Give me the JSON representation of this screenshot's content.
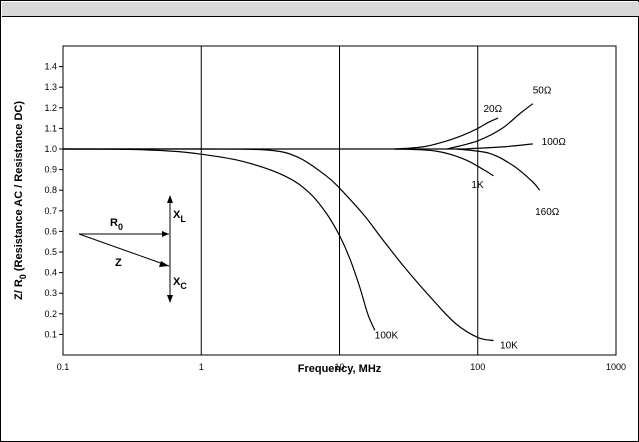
{
  "chart_data": {
    "type": "line",
    "xscale": "log",
    "xlabel": "Frequency, MHz",
    "ylabel_parts": [
      "Z/ R",
      "0",
      " (Resistance AC / Resistance DC)"
    ],
    "xlim": [
      0.1,
      1000
    ],
    "ylim": [
      0,
      1.5
    ],
    "grid": "vertical-decades",
    "x_ticks": [
      {
        "value": 0.1,
        "label": "0.1"
      },
      {
        "value": 1,
        "label": "1"
      },
      {
        "value": 10,
        "label": "10"
      },
      {
        "value": 100,
        "label": "100"
      },
      {
        "value": 1000,
        "label": "1000"
      }
    ],
    "y_ticks": [
      {
        "value": 0.1,
        "label": "0.1"
      },
      {
        "value": 0.2,
        "label": "0.2"
      },
      {
        "value": 0.3,
        "label": "0.3"
      },
      {
        "value": 0.4,
        "label": "0.4"
      },
      {
        "value": 0.5,
        "label": "0.5"
      },
      {
        "value": 0.6,
        "label": "0.6"
      },
      {
        "value": 0.7,
        "label": "0.7"
      },
      {
        "value": 0.8,
        "label": "0.8"
      },
      {
        "value": 0.9,
        "label": "0.9"
      },
      {
        "value": 1.0,
        "label": "1.0"
      },
      {
        "value": 1.1,
        "label": "1.1"
      },
      {
        "value": 1.2,
        "label": "1.2"
      },
      {
        "value": 1.3,
        "label": "1.3"
      },
      {
        "value": 1.4,
        "label": "1.4"
      }
    ],
    "baseline": {
      "y": 1.0,
      "x": [
        0.1,
        80
      ]
    },
    "series": [
      {
        "name": "100K",
        "label_at": [
          18,
          0.1
        ],
        "points": [
          [
            0.1,
            1.0
          ],
          [
            0.3,
            0.998
          ],
          [
            0.6,
            0.99
          ],
          [
            1,
            0.975
          ],
          [
            2,
            0.94
          ],
          [
            4,
            0.87
          ],
          [
            6,
            0.79
          ],
          [
            8,
            0.69
          ],
          [
            10,
            0.58
          ],
          [
            12,
            0.46
          ],
          [
            14,
            0.33
          ],
          [
            16,
            0.2
          ],
          [
            18,
            0.12
          ]
        ]
      },
      {
        "name": "10K",
        "label_at": [
          145,
          0.05
        ],
        "points": [
          [
            0.1,
            1.0
          ],
          [
            1,
            1.0
          ],
          [
            3,
            0.995
          ],
          [
            5,
            0.96
          ],
          [
            8,
            0.87
          ],
          [
            10,
            0.81
          ],
          [
            15,
            0.68
          ],
          [
            20,
            0.57
          ],
          [
            30,
            0.42
          ],
          [
            50,
            0.25
          ],
          [
            70,
            0.15
          ],
          [
            100,
            0.085
          ],
          [
            130,
            0.07
          ]
        ]
      },
      {
        "name": "20Ω",
        "label_at": [
          110,
          1.2
        ],
        "points": [
          [
            25,
            1.0
          ],
          [
            40,
            1.01
          ],
          [
            60,
            1.04
          ],
          [
            80,
            1.07
          ],
          [
            100,
            1.1
          ],
          [
            120,
            1.13
          ],
          [
            140,
            1.15
          ]
        ]
      },
      {
        "name": "50Ω",
        "label_at": [
          250,
          1.29
        ],
        "points": [
          [
            60,
            1.0
          ],
          [
            100,
            1.04
          ],
          [
            150,
            1.1
          ],
          [
            200,
            1.17
          ],
          [
            250,
            1.22
          ]
        ]
      },
      {
        "name": "100Ω",
        "label_at": [
          290,
          1.04
        ],
        "points": [
          [
            80,
            1.0
          ],
          [
            150,
            1.01
          ],
          [
            250,
            1.025
          ]
        ]
      },
      {
        "name": "1K",
        "label_at": [
          90,
          0.83
        ],
        "points": [
          [
            25,
            1.0
          ],
          [
            50,
            0.99
          ],
          [
            80,
            0.95
          ],
          [
            110,
            0.9
          ],
          [
            130,
            0.87
          ]
        ]
      },
      {
        "name": "160Ω",
        "label_at": [
          260,
          0.7
        ],
        "points": [
          [
            70,
            1.0
          ],
          [
            120,
            0.98
          ],
          [
            180,
            0.92
          ],
          [
            250,
            0.84
          ],
          [
            280,
            0.8
          ]
        ]
      }
    ],
    "inset": {
      "r_label": "R",
      "r_sub": "0",
      "z_label": "Z",
      "xl_label": "X",
      "xl_sub": "L",
      "xc_label": "X",
      "xc_sub": "C"
    }
  }
}
